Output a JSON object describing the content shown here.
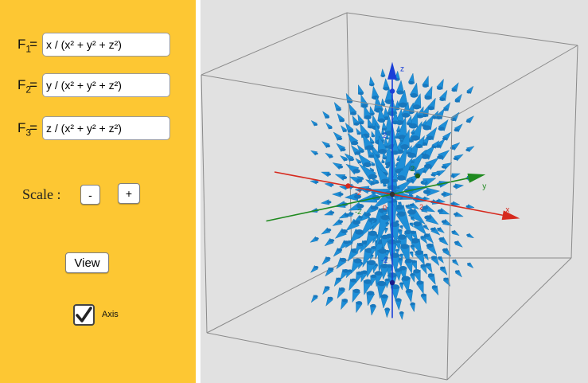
{
  "functions": [
    {
      "name": "F",
      "index": "1",
      "value": "x / (x² + y² + z²)"
    },
    {
      "name": "F",
      "index": "2",
      "value": "y / (x² + y² + z²)"
    },
    {
      "name": "F",
      "index": "3",
      "value": "z / (x² + y² + z²)"
    }
  ],
  "eq_sign": "=",
  "scale": {
    "label": "Scale :",
    "minus_label": "-",
    "plus_label": "+"
  },
  "view_button_label": "View",
  "axis_toggle": {
    "label": "Axis",
    "checked": true
  },
  "axes": {
    "x_label": "x",
    "y_label": "y",
    "z_label": "z",
    "x_ticks": [
      "-2",
      "0",
      "2"
    ],
    "y_ticks": [
      "-2",
      "2"
    ],
    "z_ticks": [
      "-2",
      "2"
    ]
  },
  "colors": {
    "panel": "#fdc733",
    "viewport": "#e1e1e1",
    "arrow": "#1e8fd8",
    "x_axis": "#d62a1e",
    "y_axis": "#1f8a1f",
    "z_axis": "#1a3fd8"
  },
  "field": {
    "type": "radial-outward",
    "grid_per_axis": 7
  }
}
